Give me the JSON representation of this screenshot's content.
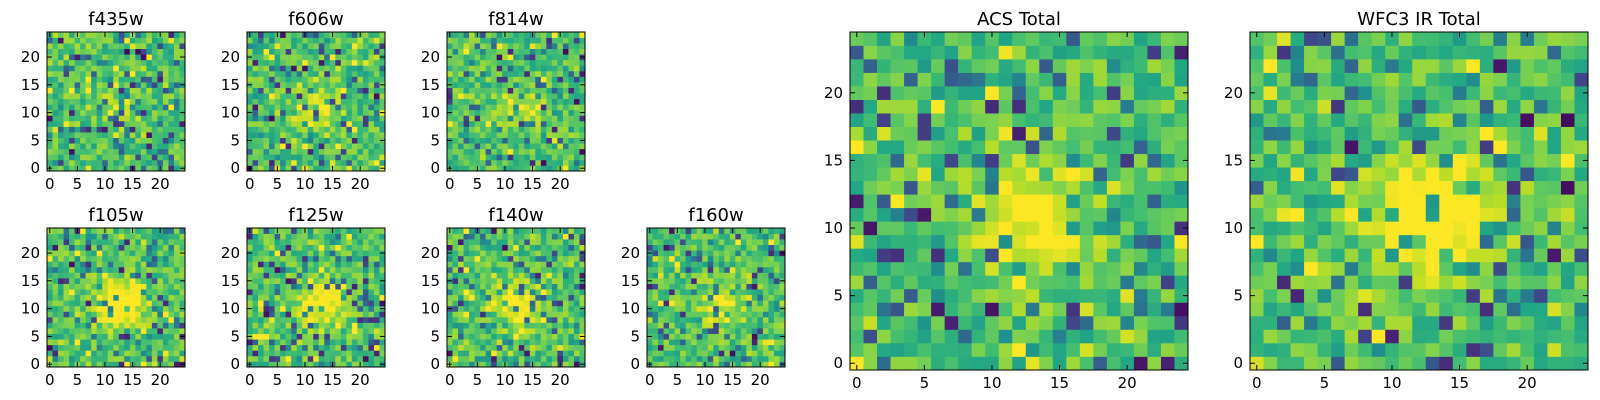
{
  "chart_data": {
    "type": "heatmap",
    "colormap": "viridis",
    "panels": [
      {
        "id": "f435w",
        "title": "f435w",
        "grid": 25,
        "seed": 11,
        "blob_strength": 0.15,
        "x_ticks": [
          0,
          5,
          10,
          15,
          20
        ],
        "y_ticks": [
          0,
          5,
          10,
          15,
          20
        ]
      },
      {
        "id": "f606w",
        "title": "f606w",
        "grid": 25,
        "seed": 23,
        "blob_strength": 0.2,
        "x_ticks": [
          0,
          5,
          10,
          15,
          20
        ],
        "y_ticks": [
          0,
          5,
          10,
          15,
          20
        ]
      },
      {
        "id": "f814w",
        "title": "f814w",
        "grid": 25,
        "seed": 37,
        "blob_strength": 0.2,
        "x_ticks": [
          0,
          5,
          10,
          15,
          20
        ],
        "y_ticks": [
          0,
          5,
          10,
          15,
          20
        ]
      },
      {
        "id": "f105w",
        "title": "f105w",
        "grid": 25,
        "seed": 41,
        "blob_strength": 0.45,
        "x_ticks": [
          0,
          5,
          10,
          15,
          20
        ],
        "y_ticks": [
          0,
          5,
          10,
          15,
          20
        ]
      },
      {
        "id": "f125w",
        "title": "f125w",
        "grid": 25,
        "seed": 53,
        "blob_strength": 0.35,
        "x_ticks": [
          0,
          5,
          10,
          15,
          20
        ],
        "y_ticks": [
          0,
          5,
          10,
          15,
          20
        ]
      },
      {
        "id": "f140w",
        "title": "f140w",
        "grid": 25,
        "seed": 67,
        "blob_strength": 0.3,
        "x_ticks": [
          0,
          5,
          10,
          15,
          20
        ],
        "y_ticks": [
          0,
          5,
          10,
          15,
          20
        ]
      },
      {
        "id": "f160w",
        "title": "f160w",
        "grid": 25,
        "seed": 79,
        "blob_strength": 0.25,
        "x_ticks": [
          0,
          5,
          10,
          15,
          20
        ],
        "y_ticks": [
          0,
          5,
          10,
          15,
          20
        ]
      },
      {
        "id": "acs_total",
        "title": "ACS Total",
        "grid": 25,
        "seed": 89,
        "blob_strength": 0.35,
        "x_ticks": [
          0,
          5,
          10,
          15,
          20
        ],
        "y_ticks": [
          0,
          5,
          10,
          15,
          20
        ]
      },
      {
        "id": "wfc3_ir_total",
        "title": "WFC3 IR Total",
        "grid": 25,
        "seed": 97,
        "blob_strength": 0.5,
        "x_ticks": [
          0,
          5,
          10,
          15,
          20
        ],
        "y_ticks": [
          0,
          5,
          10,
          15,
          20
        ]
      }
    ],
    "blob_center": [
      13,
      11
    ],
    "xlim": [
      0,
      25
    ],
    "ylim": [
      0,
      25
    ]
  }
}
